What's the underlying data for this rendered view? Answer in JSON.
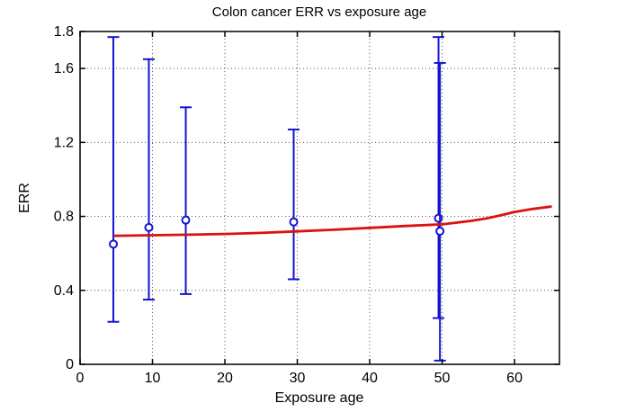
{
  "figure": {
    "background": "#ffffff"
  },
  "chart_data": {
    "type": "errorbar-line",
    "title": "Colon cancer ERR vs exposure age",
    "xlabel": "Exposure age",
    "ylabel": "ERR",
    "xlim": [
      0,
      66.2
    ],
    "ylim": [
      0,
      1.8
    ],
    "xticks": [
      0,
      10,
      20,
      30,
      40,
      50,
      60
    ],
    "yticks": [
      0,
      0.4,
      0.8,
      1.2,
      1.6,
      1.8
    ],
    "grid": true,
    "legend": "none",
    "colors": {
      "errorbar": "#1515cf",
      "marker_fill": "#ffffff",
      "fit_line": "#dd1111",
      "grid_line": "#555555",
      "axis_frame": "#000000"
    },
    "series": [
      {
        "name": "ERR estimates with confidence intervals",
        "type": "errorbar",
        "points": [
          {
            "x": 4.6,
            "y": 0.65,
            "lo": 0.23,
            "hi": 1.77
          },
          {
            "x": 9.5,
            "y": 0.74,
            "lo": 0.35,
            "hi": 1.65
          },
          {
            "x": 14.6,
            "y": 0.78,
            "lo": 0.38,
            "hi": 1.39
          },
          {
            "x": 29.5,
            "y": 0.77,
            "lo": 0.46,
            "hi": 1.27
          },
          {
            "x": 49.5,
            "y": 0.79,
            "lo": 0.25,
            "hi": 1.77
          },
          {
            "x": 49.7,
            "y": 0.72,
            "lo": 0.02,
            "hi": 1.63
          }
        ]
      },
      {
        "name": "fitted ERR curve",
        "type": "line",
        "x": [
          4.8,
          10,
          15,
          20,
          25,
          30,
          35,
          40,
          45,
          50,
          52,
          54,
          56,
          58,
          60,
          62.5,
          65
        ],
        "y": [
          0.695,
          0.698,
          0.701,
          0.705,
          0.711,
          0.719,
          0.728,
          0.738,
          0.748,
          0.757,
          0.766,
          0.776,
          0.788,
          0.805,
          0.824,
          0.84,
          0.853
        ]
      }
    ]
  }
}
